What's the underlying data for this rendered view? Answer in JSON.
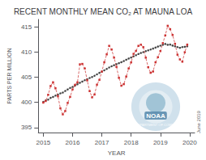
{
  "chart_data": {
    "type": "line",
    "title": "RECENT MONTHLY MEAN CO₂ AT MAUNA LOA",
    "xlabel": "YEAR",
    "ylabel": "PARTS PER MILLION",
    "x": [
      2015,
      2015.0833333333333,
      2015.1666666666667,
      2015.25,
      2015.3333333333333,
      2015.4166666666667,
      2015.5,
      2015.5833333333333,
      2015.6666666666667,
      2015.75,
      2015.8333333333333,
      2015.9166666666667,
      2016,
      2016.0833333333333,
      2016.1666666666667,
      2016.25,
      2016.3333333333333,
      2016.4166666666667,
      2016.5,
      2016.5833333333333,
      2016.6666666666667,
      2016.75,
      2016.8333333333333,
      2016.9166666666667,
      2017,
      2017.0833333333333,
      2017.1666666666667,
      2017.25,
      2017.3333333333333,
      2017.4166666666667,
      2017.5,
      2017.5833333333333,
      2017.6666666666667,
      2017.75,
      2017.8333333333333,
      2017.9166666666667,
      2018,
      2018.0833333333333,
      2018.1666666666667,
      2018.25,
      2018.3333333333333,
      2018.4166666666667,
      2018.5,
      2018.5833333333333,
      2018.6666666666667,
      2018.75,
      2018.8333333333333,
      2018.9166666666667,
      2019,
      2019.0833333333333,
      2019.1666666666667,
      2019.25,
      2019.3333333333333,
      2019.4166666666667,
      2019.5,
      2019.5833333333333,
      2019.6666666666667,
      2019.75,
      2019.8333333333333,
      2019.9166666666667
    ],
    "series": [
      {
        "color": "#cc3333",
        "line_style": "dashed",
        "marker": "square",
        "values": [
          399.96,
          400.28,
          401.52,
          403.26,
          404.0,
          402.8,
          401.22,
          398.83,
          397.63,
          398.29,
          399.9,
          401.11,
          402.59,
          403.5,
          403.99,
          407.57,
          407.65,
          406.75,
          404.38,
          402.25,
          401.01,
          401.57,
          403.53,
          404.48,
          406.13,
          407.98,
          409.55,
          411.24,
          410.52,
          408.9,
          407.07,
          404.89,
          403.32,
          403.63,
          405.14,
          406.75,
          407.96,
          409.65,
          410.24,
          411.24,
          411.47,
          410.98,
          408.9,
          406.99,
          405.89,
          406.15,
          407.97,
          409.0,
          410.2,
          411.78,
          413.32,
          415.23,
          414.56,
          413.4,
          411.65,
          409.49,
          408.54,
          408.1,
          409.98,
          411.49
        ]
      },
      {
        "color": "#444444",
        "line_style": "solid",
        "marker": "circle",
        "values": [
          400.1,
          400.4,
          400.55,
          400.9,
          401.1,
          401.35,
          401.55,
          401.8,
          401.95,
          402.28,
          402.58,
          402.88,
          403.08,
          403.35,
          403.6,
          403.9,
          404.15,
          404.42,
          404.6,
          404.85,
          405.05,
          405.3,
          405.58,
          405.88,
          406.1,
          406.38,
          406.65,
          406.95,
          407.18,
          407.4,
          407.6,
          407.8,
          408.0,
          408.22,
          408.48,
          408.72,
          408.92,
          409.15,
          409.38,
          409.62,
          409.82,
          410.0,
          410.18,
          410.35,
          410.52,
          410.7,
          410.9,
          411.1,
          411.28,
          411.45,
          411.62,
          411.45,
          411.5,
          411.3,
          411.15,
          411.0,
          410.85,
          411.0,
          411.05,
          411.15
        ]
      }
    ],
    "xlim": [
      2014.83,
      2020.17
    ],
    "ylim": [
      394,
      416.5
    ],
    "xticks": [
      2015,
      2016,
      2017,
      2018,
      2019,
      2020
    ],
    "yticks": [
      395,
      400,
      405,
      410,
      415
    ],
    "grid": false,
    "annotations": [
      "June 2019",
      "NOAA",
      "U.S. DEPARTMENT OF COMMERCE"
    ]
  }
}
